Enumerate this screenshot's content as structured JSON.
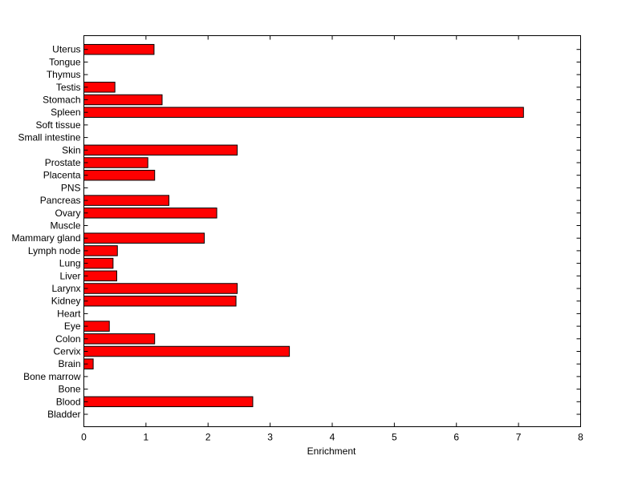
{
  "chart_data": {
    "type": "bar",
    "orientation": "horizontal",
    "title": "",
    "xlabel": "Enrichment",
    "ylabel": "",
    "xlim": [
      0,
      8
    ],
    "xticks": [
      0,
      1,
      2,
      3,
      4,
      5,
      6,
      7,
      8
    ],
    "grid": false,
    "bar_color": "#ff0000",
    "bar_edge_color": "#000000",
    "categories": [
      "Bladder",
      "Blood",
      "Bone",
      "Bone marrow",
      "Brain",
      "Cervix",
      "Colon",
      "Eye",
      "Heart",
      "Kidney",
      "Larynx",
      "Liver",
      "Lung",
      "Lymph node",
      "Mammary gland",
      "Muscle",
      "Ovary",
      "Pancreas",
      "PNS",
      "Placenta",
      "Prostate",
      "Skin",
      "Small intestine",
      "Soft tissue",
      "Spleen",
      "Stomach",
      "Testis",
      "Thymus",
      "Tongue",
      "Uterus"
    ],
    "values": [
      0,
      2.72,
      0,
      0,
      0.15,
      3.31,
      1.14,
      0.41,
      0,
      2.45,
      2.47,
      0.53,
      0.47,
      0.54,
      1.94,
      0,
      2.14,
      1.37,
      0,
      1.14,
      1.03,
      2.47,
      0,
      0,
      7.08,
      1.26,
      0.5,
      0,
      0,
      1.13
    ]
  }
}
